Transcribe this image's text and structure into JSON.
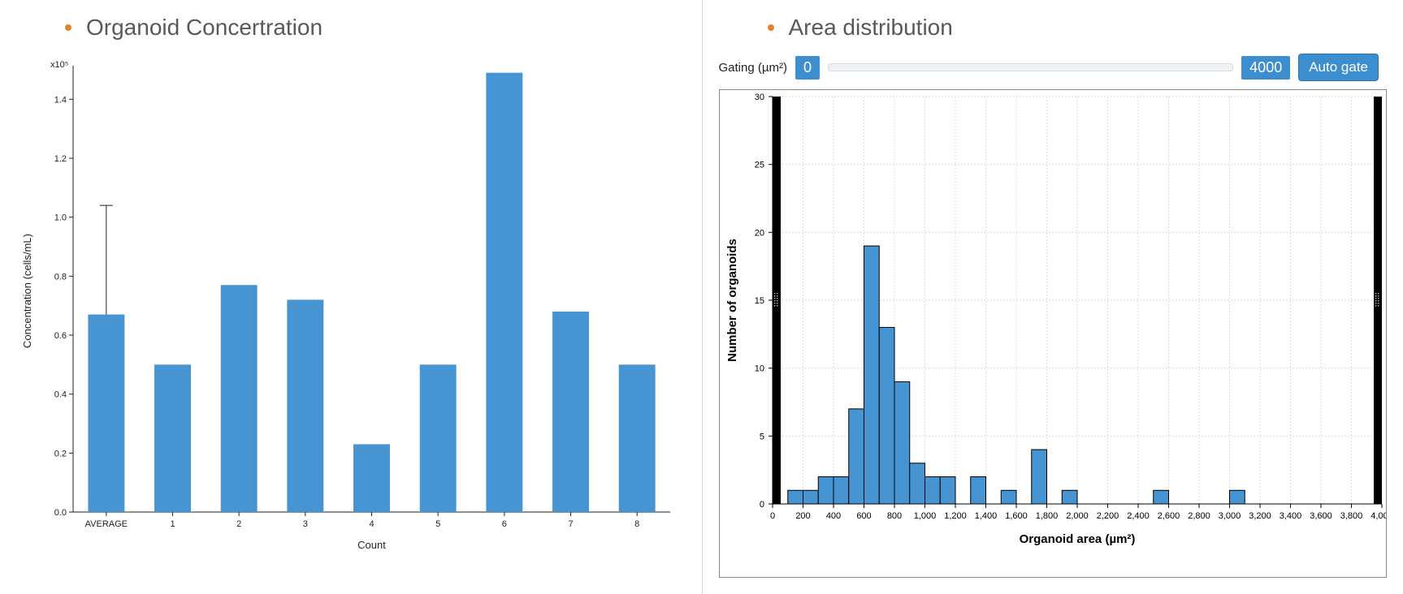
{
  "bullet_color": "#e38327",
  "left": {
    "title": "Organoid Concertration",
    "chart": {
      "type": "bar",
      "exponent_label": "x10⁵",
      "ylabel": "Concentration (cells/mL)",
      "xlabel": "Count",
      "ylim": [
        0,
        1.5
      ],
      "yticks": [
        0.0,
        0.2,
        0.4,
        0.6,
        0.8,
        1.0,
        1.2,
        1.4
      ],
      "categories": [
        "AVERAGE",
        "1",
        "2",
        "3",
        "4",
        "5",
        "6",
        "7",
        "8"
      ],
      "values": [
        0.67,
        0.5,
        0.77,
        0.72,
        0.23,
        0.5,
        1.49,
        0.68,
        0.5
      ],
      "error_bar": {
        "index": 0,
        "upper": 1.04
      },
      "bar_color": "#4694d1",
      "axis_color": "#222222",
      "bar_width_ratio": 0.55,
      "background_color": "#ffffff",
      "label_fontsize": 13,
      "tick_fontsize": 11
    }
  },
  "right": {
    "title": "Area distribution",
    "gating": {
      "label": "Gating (µm²)",
      "min_value": "0",
      "max_value": "4000",
      "button_label": "Auto gate",
      "value_bg": "#3d8ecf",
      "button_bg": "#3d8ecf",
      "track_bg": "#eef2f5"
    },
    "chart": {
      "type": "histogram",
      "ylabel": "Number of organoids",
      "xlabel": "Organoid area (µm²)",
      "xlim": [
        0,
        4000
      ],
      "ylim": [
        0,
        30
      ],
      "yticks": [
        0,
        5,
        10,
        15,
        20,
        25,
        30
      ],
      "xtick_step": 200,
      "xtick_label_step": 200,
      "bin_width": 100,
      "bins": [
        {
          "start": 100,
          "count": 1
        },
        {
          "start": 200,
          "count": 1
        },
        {
          "start": 300,
          "count": 2
        },
        {
          "start": 400,
          "count": 2
        },
        {
          "start": 500,
          "count": 7
        },
        {
          "start": 600,
          "count": 19
        },
        {
          "start": 700,
          "count": 13
        },
        {
          "start": 800,
          "count": 9
        },
        {
          "start": 900,
          "count": 3
        },
        {
          "start": 1000,
          "count": 2
        },
        {
          "start": 1100,
          "count": 2
        },
        {
          "start": 1200,
          "count": 0
        },
        {
          "start": 1300,
          "count": 2
        },
        {
          "start": 1400,
          "count": 0
        },
        {
          "start": 1500,
          "count": 1
        },
        {
          "start": 1600,
          "count": 0
        },
        {
          "start": 1700,
          "count": 4
        },
        {
          "start": 1800,
          "count": 0
        },
        {
          "start": 1900,
          "count": 1
        },
        {
          "start": 2500,
          "count": 1
        },
        {
          "start": 3000,
          "count": 1
        }
      ],
      "bar_color": "#4694d1",
      "bar_stroke": "#000000",
      "grid_color": "#d9d9d9",
      "axis_color": "#000000",
      "gate_band_color": "#000000",
      "background_color": "#ffffff"
    }
  }
}
